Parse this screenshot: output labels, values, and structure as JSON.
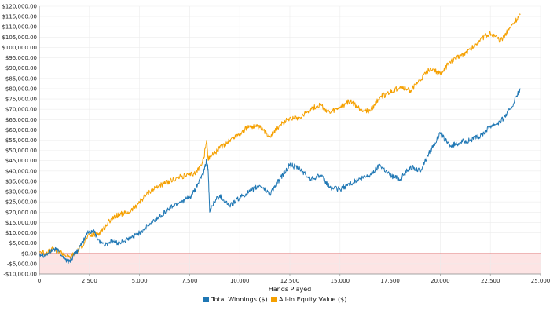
{
  "chart_data": {
    "type": "line",
    "xlabel": "Hands Played",
    "ylabel": "",
    "xlim": [
      0,
      25000
    ],
    "ylim": [
      -10000,
      120000
    ],
    "x_ticks": [
      0,
      2500,
      5000,
      7500,
      10000,
      12500,
      15000,
      17500,
      20000,
      22500,
      25000
    ],
    "x_tick_labels": [
      "0",
      "2,500",
      "5,000",
      "7,500",
      "10,000",
      "12,500",
      "15,000",
      "17,500",
      "20,000",
      "22,500",
      "25,000"
    ],
    "y_ticks": [
      -10000,
      -5000,
      0,
      5000,
      10000,
      15000,
      20000,
      25000,
      30000,
      35000,
      40000,
      45000,
      50000,
      55000,
      60000,
      65000,
      70000,
      75000,
      80000,
      85000,
      90000,
      95000,
      100000,
      105000,
      110000,
      115000,
      120000
    ],
    "y_tick_labels": [
      "-$10,000.00",
      "-$5,000.00",
      "$0.00",
      "$5,000.00",
      "$10,000.00",
      "$15,000.00",
      "$20,000.00",
      "$25,000.00",
      "$30,000.00",
      "$35,000.00",
      "$40,000.00",
      "$45,000.00",
      "$50,000.00",
      "$55,000.00",
      "$60,000.00",
      "$65,000.00",
      "$70,000.00",
      "$75,000.00",
      "$80,000.00",
      "$85,000.00",
      "$90,000.00",
      "$95,000.00",
      "$100,000.00",
      "$105,000.00",
      "$110,000.00",
      "$115,000.00",
      "$120,000.00"
    ],
    "grid": true,
    "negative_region_shaded": true,
    "legend_position": "bottom-center",
    "series": [
      {
        "name": "Total Winnings ($)",
        "color": "#1f77b4",
        "x": [
          0,
          300,
          700,
          1000,
          1300,
          1500,
          1800,
          2100,
          2400,
          2700,
          3000,
          3300,
          3600,
          4000,
          4500,
          5000,
          5500,
          6000,
          6500,
          7000,
          7500,
          7800,
          8000,
          8200,
          8350,
          8420,
          8500,
          8600,
          8800,
          9000,
          9500,
          10000,
          10500,
          11000,
          11500,
          12000,
          12500,
          13000,
          13500,
          14000,
          14500,
          15000,
          15500,
          16000,
          16500,
          17000,
          17500,
          18000,
          18500,
          19000,
          19500,
          20000,
          20500,
          21000,
          21500,
          22000,
          22500,
          23000,
          23500,
          24000
        ],
        "y": [
          0,
          -1000,
          2000,
          1000,
          -3000,
          -4000,
          0,
          4000,
          10000,
          11000,
          6000,
          4000,
          6000,
          5000,
          7000,
          10000,
          14000,
          18000,
          22000,
          25000,
          27000,
          31000,
          36000,
          39000,
          45000,
          41000,
          20000,
          23000,
          26000,
          28000,
          23000,
          27000,
          30000,
          33000,
          29000,
          36000,
          43000,
          41000,
          36000,
          38000,
          32000,
          31000,
          34000,
          36000,
          38000,
          43000,
          38000,
          36000,
          42000,
          40000,
          50000,
          58000,
          52000,
          54000,
          55000,
          57000,
          62000,
          64000,
          70000,
          80000
        ]
      },
      {
        "name": "All-in Equity Value ($)",
        "color": "#f5a000",
        "x": [
          0,
          300,
          700,
          1000,
          1300,
          1500,
          1800,
          2100,
          2400,
          2700,
          3000,
          3300,
          3600,
          4000,
          4500,
          5000,
          5500,
          6000,
          6500,
          7000,
          7500,
          7800,
          8000,
          8200,
          8350,
          8420,
          8500,
          8800,
          9000,
          9500,
          10000,
          10500,
          11000,
          11500,
          12000,
          12500,
          13000,
          13500,
          14000,
          14500,
          15000,
          15500,
          16000,
          16500,
          17000,
          17500,
          18000,
          18500,
          19000,
          19500,
          20000,
          20500,
          21000,
          21500,
          22000,
          22500,
          23000,
          23500,
          24000
        ],
        "y": [
          1000,
          0,
          2000,
          1000,
          -1000,
          -2000,
          0,
          3000,
          8000,
          9000,
          10000,
          13000,
          17000,
          19000,
          20000,
          25000,
          30000,
          33000,
          35000,
          37000,
          38000,
          39000,
          42000,
          46000,
          55000,
          46000,
          47000,
          49000,
          51000,
          55000,
          58000,
          62000,
          61000,
          57000,
          62000,
          66000,
          66000,
          70000,
          72000,
          68000,
          71000,
          74000,
          70000,
          69000,
          76000,
          78000,
          81000,
          79000,
          84000,
          90000,
          87000,
          93000,
          96000,
          99000,
          104000,
          107000,
          103000,
          110000,
          116000
        ]
      }
    ]
  }
}
